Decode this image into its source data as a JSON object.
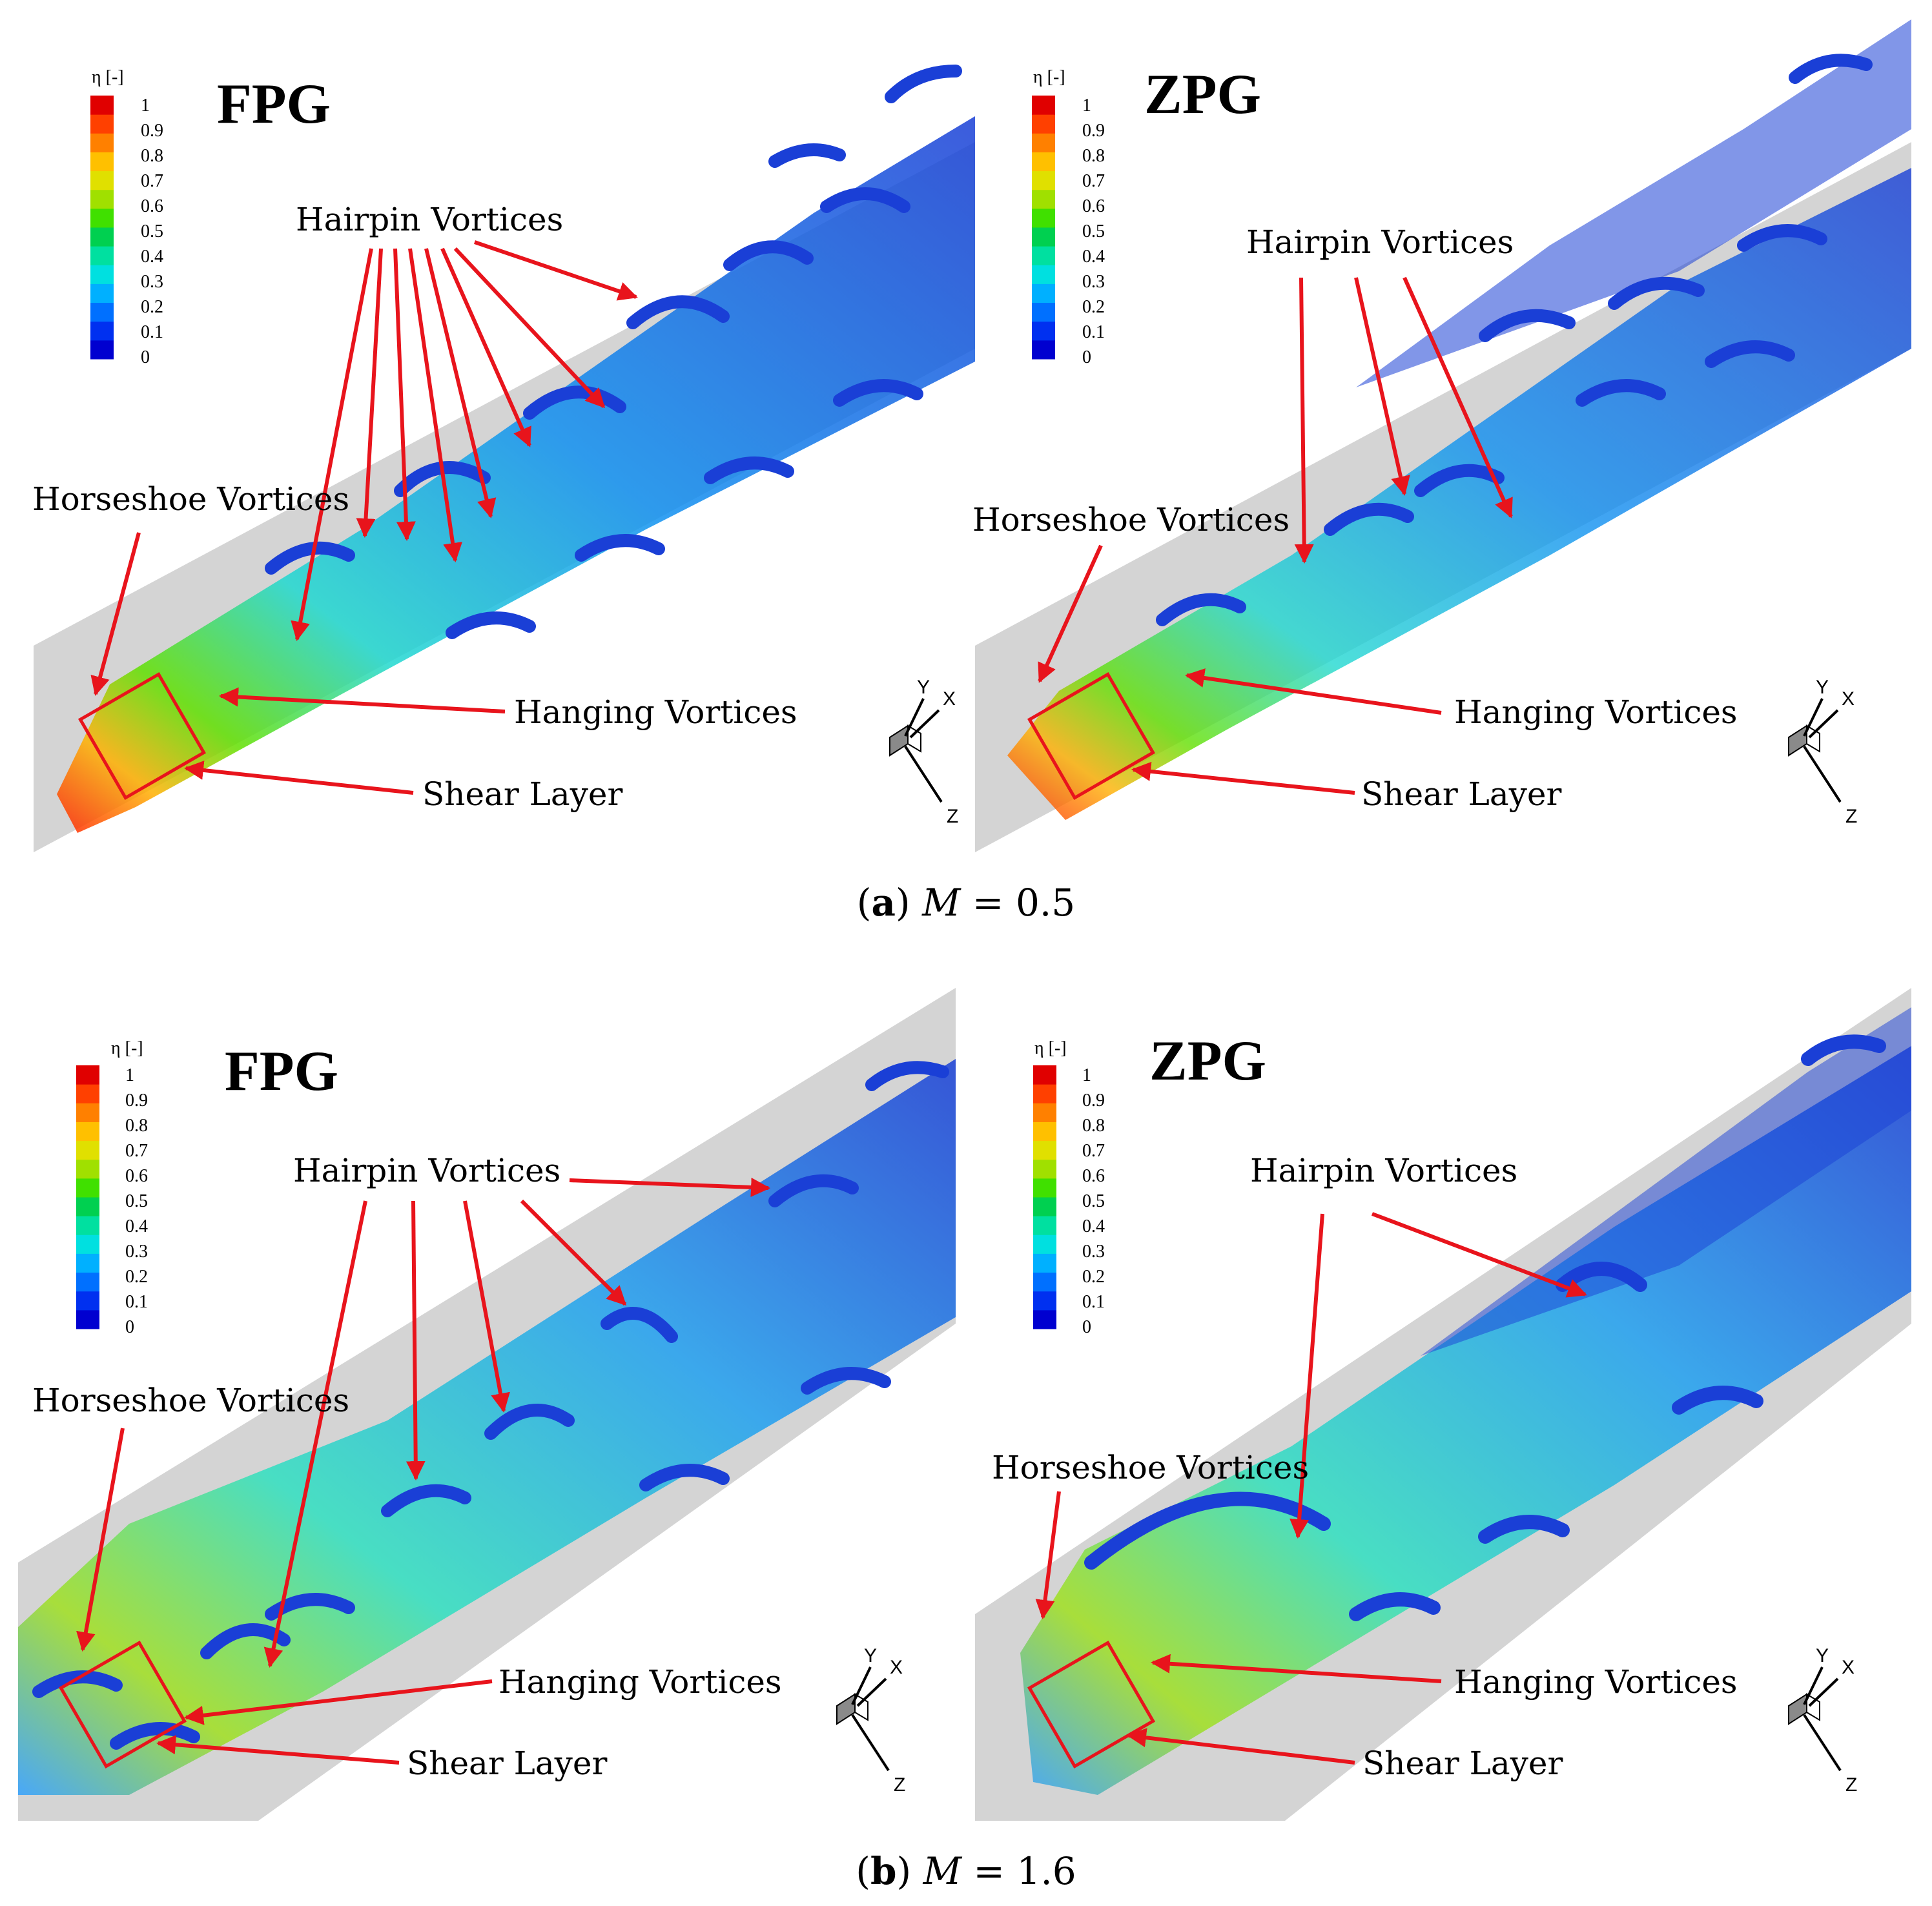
{
  "colorbar": {
    "title": "η [-]",
    "ticks": [
      "1",
      "0.9",
      "0.8",
      "0.7",
      "0.6",
      "0.5",
      "0.4",
      "0.3",
      "0.2",
      "0.1",
      "0"
    ],
    "colors": [
      "#0000d0",
      "#0030f0",
      "#0070ff",
      "#00b0ff",
      "#00e0e0",
      "#00e0a0",
      "#00d050",
      "#40e000",
      "#a0e000",
      "#e0e000",
      "#ffc000",
      "#ff8000",
      "#ff4000",
      "#e00000"
    ]
  },
  "labels": {
    "hairpin": "Hairpin Vortices",
    "horseshoe": "Horseshoe Vortices",
    "hanging": "Hanging Vortices",
    "shear": "Shear Layer"
  },
  "axes": {
    "x": "X",
    "y": "Y",
    "z": "Z"
  },
  "rows": [
    {
      "caption_letter": "a",
      "caption_var": "M",
      "caption_rest": " = 0.5",
      "panels": [
        {
          "title": "FPG"
        },
        {
          "title": "ZPG"
        }
      ]
    },
    {
      "caption_letter": "b",
      "caption_var": "M",
      "caption_rest": " = 1.6",
      "panels": [
        {
          "title": "FPG"
        },
        {
          "title": "ZPG"
        }
      ]
    }
  ],
  "colors": {
    "annotation": "#e8141c",
    "plate": "#d4d4d4",
    "vortex_blue": "#1a3fd6"
  }
}
